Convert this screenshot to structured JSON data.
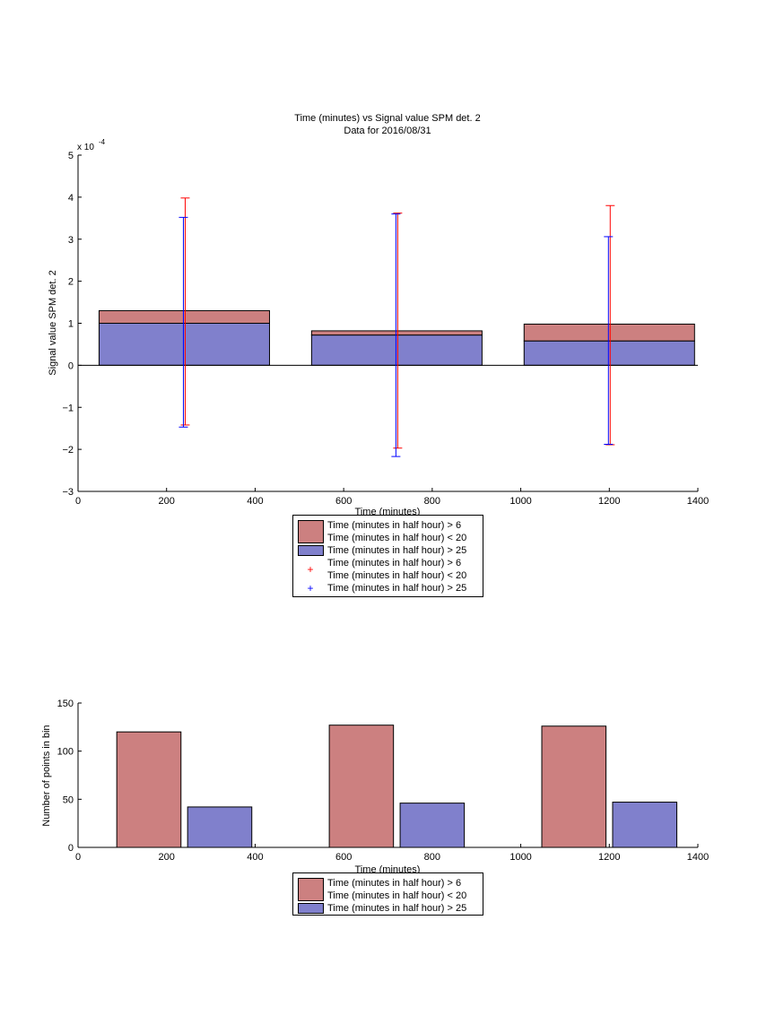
{
  "chart_data": [
    {
      "type": "bar",
      "layout": "stacked",
      "title": "Time (minutes) vs Signal value SPM det. 2",
      "subtitle": "Data for 2016/08/31",
      "xlabel": "Time (minutes)",
      "ylabel": "Signal value SPM det. 2",
      "y_exponent": "x 10",
      "y_exponent_power": "-4",
      "xlim": [
        0,
        1400
      ],
      "ylim": [
        -3,
        5
      ],
      "xticks": [
        "0",
        "200",
        "400",
        "600",
        "800",
        "1000",
        "1200",
        "1400"
      ],
      "yticks": [
        "−3",
        "−2",
        "−1",
        "0",
        "1",
        "2",
        "3",
        "4",
        "5"
      ],
      "x": [
        240,
        720,
        1200
      ],
      "bar_width": 385,
      "series": [
        {
          "name": "Time (minutes in half hour) > 25",
          "values": [
            1.0,
            0.72,
            0.58
          ],
          "color": "#8080cc"
        },
        {
          "name": "Time (minutes in half hour) > 6\nTime (minutes in half hour) < 20",
          "values": [
            0.3,
            0.1,
            0.4
          ],
          "color": "#cc8080"
        }
      ],
      "errorbars": [
        {
          "name": "Time (minutes in half hour) > 6\nTime (minutes in half hour) < 20",
          "color": "#ff0000",
          "x_offset": 1,
          "low": [
            -1.42,
            -1.97,
            -1.89
          ],
          "high": [
            3.98,
            3.62,
            3.8
          ]
        },
        {
          "name": "Time (minutes in half hour) > 25",
          "color": "#0000ff",
          "x_offset": -1,
          "low": [
            -1.47,
            -2.17,
            -1.88
          ],
          "high": [
            3.52,
            3.6,
            3.06
          ]
        }
      ],
      "legend": [
        {
          "kind": "patch",
          "color": "#cc8080",
          "lines": [
            "Time (minutes in half hour) > 6",
            "Time (minutes in half hour) < 20"
          ]
        },
        {
          "kind": "patch",
          "color": "#8080cc",
          "lines": [
            "Time (minutes in half hour) > 25"
          ]
        },
        {
          "kind": "marker",
          "color": "#ff0000",
          "marker": "+",
          "lines": [
            "Time (minutes in half hour) > 6",
            "Time (minutes in half hour) < 20"
          ]
        },
        {
          "kind": "marker",
          "color": "#0000ff",
          "marker": "+",
          "lines": [
            "Time (minutes in half hour) > 25"
          ]
        }
      ],
      "legend_position": "below"
    },
    {
      "type": "bar",
      "layout": "grouped",
      "title": "",
      "xlabel": "Time (minutes)",
      "ylabel": "Number of points in bin",
      "xlim": [
        0,
        1400
      ],
      "ylim": [
        0,
        150
      ],
      "xticks": [
        "0",
        "200",
        "400",
        "600",
        "800",
        "1000",
        "1200",
        "1400"
      ],
      "yticks": [
        "0",
        "50",
        "100",
        "150"
      ],
      "groups": [
        {
          "x": 160,
          "value": 120,
          "series": "Time (minutes in half hour) > 6\nTime (minutes in half hour) < 20",
          "color": "#cc8080"
        },
        {
          "x": 320,
          "value": 42,
          "series": "Time (minutes in half hour) > 25",
          "color": "#8080cc"
        },
        {
          "x": 640,
          "value": 127,
          "series": "Time (minutes in half hour) > 6\nTime (minutes in half hour) < 20",
          "color": "#cc8080"
        },
        {
          "x": 800,
          "value": 46,
          "series": "Time (minutes in half hour) > 25",
          "color": "#8080cc"
        },
        {
          "x": 1120,
          "value": 126,
          "series": "Time (minutes in half hour) > 6\nTime (minutes in half hour) < 20",
          "color": "#cc8080"
        },
        {
          "x": 1280,
          "value": 47,
          "series": "Time (minutes in half hour) > 25",
          "color": "#8080cc"
        }
      ],
      "bar_width": 145,
      "legend": [
        {
          "kind": "patch",
          "color": "#cc8080",
          "lines": [
            "Time (minutes in half hour) > 6",
            "Time (minutes in half hour) < 20"
          ]
        },
        {
          "kind": "patch",
          "color": "#8080cc",
          "lines": [
            "Time (minutes in half hour) > 25"
          ]
        }
      ],
      "legend_position": "below"
    }
  ]
}
